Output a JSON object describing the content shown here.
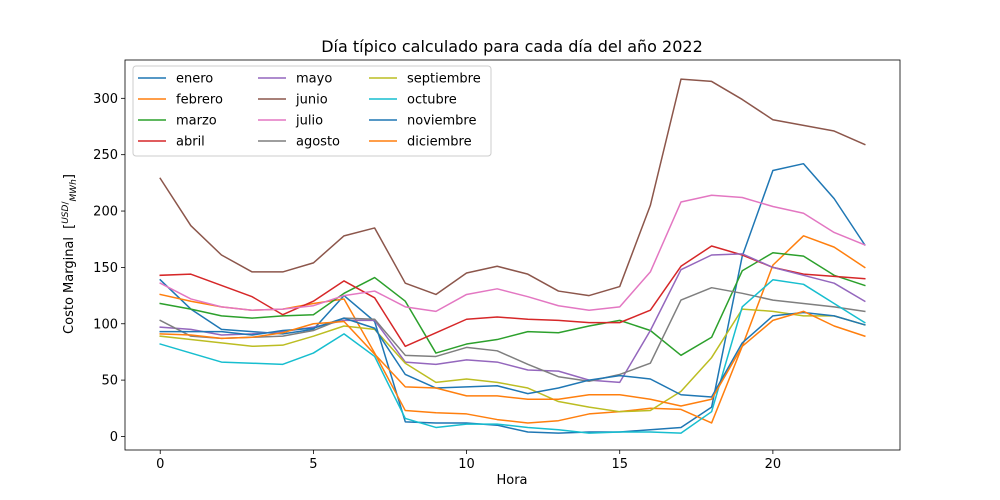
{
  "chart_data": {
    "type": "line",
    "title": "Día típico calculado para cada día del año 2022",
    "xlabel": "Hora",
    "ylabel_main": "Costo Marginal",
    "ylabel_unit_num": "USD",
    "ylabel_unit_den": "MWh",
    "xlim": [
      -1.15,
      24.15
    ],
    "ylim": [
      -12,
      334
    ],
    "xticks": [
      0,
      5,
      10,
      15,
      20
    ],
    "yticks": [
      0,
      50,
      100,
      150,
      200,
      250,
      300
    ],
    "grid": false,
    "legend_position": "top-left",
    "x": [
      0,
      1,
      2,
      3,
      4,
      5,
      6,
      7,
      8,
      9,
      10,
      11,
      12,
      13,
      14,
      15,
      16,
      17,
      18,
      19,
      20,
      21,
      22,
      23
    ],
    "series": [
      {
        "name": "enero",
        "color": "#1f77b4",
        "values": [
          139,
          113,
          95,
          93,
          91,
          95,
          125,
          102,
          13,
          12,
          12,
          10,
          4,
          3,
          4,
          4,
          6,
          8,
          26,
          160,
          236,
          242,
          211,
          170
        ]
      },
      {
        "name": "febrero",
        "color": "#ff7f0e",
        "values": [
          126,
          120,
          115,
          112,
          113,
          118,
          122,
          74,
          23,
          21,
          20,
          15,
          12,
          14,
          20,
          22,
          25,
          24,
          12,
          80,
          152,
          178,
          168,
          150
        ]
      },
      {
        "name": "marzo",
        "color": "#2ca02c",
        "values": [
          118,
          113,
          107,
          105,
          107,
          108,
          127,
          141,
          120,
          74,
          82,
          86,
          93,
          92,
          98,
          103,
          94,
          72,
          88,
          147,
          163,
          160,
          143,
          134
        ]
      },
      {
        "name": "abril",
        "color": "#d62728",
        "values": [
          143,
          144,
          134,
          124,
          108,
          120,
          138,
          123,
          80,
          92,
          104,
          106,
          104,
          103,
          101,
          101,
          112,
          151,
          169,
          161,
          150,
          144,
          142,
          140
        ]
      },
      {
        "name": "mayo",
        "color": "#9467bd",
        "values": [
          97,
          95,
          90,
          91,
          93,
          97,
          103,
          103,
          66,
          64,
          68,
          66,
          59,
          58,
          50,
          48,
          94,
          148,
          161,
          162,
          150,
          143,
          136,
          120
        ]
      },
      {
        "name": "junio",
        "color": "#8c564b",
        "values": [
          229,
          187,
          161,
          146,
          146,
          154,
          178,
          185,
          136,
          126,
          145,
          151,
          144,
          129,
          125,
          133,
          205,
          317,
          315,
          299,
          281,
          276,
          271,
          259
        ]
      },
      {
        "name": "julio",
        "color": "#e377c2",
        "values": [
          136,
          122,
          115,
          112,
          113,
          116,
          125,
          129,
          115,
          111,
          126,
          131,
          124,
          116,
          112,
          115,
          146,
          208,
          214,
          212,
          204,
          198,
          181,
          170
        ]
      },
      {
        "name": "agosto",
        "color": "#7f7f7f",
        "values": [
          103,
          89,
          87,
          88,
          89,
          94,
          105,
          104,
          72,
          71,
          79,
          76,
          64,
          53,
          49,
          55,
          65,
          121,
          132,
          127,
          121,
          118,
          115,
          111
        ]
      },
      {
        "name": "septiembre",
        "color": "#bcbd22",
        "values": [
          89,
          86,
          83,
          80,
          81,
          89,
          98,
          95,
          65,
          48,
          51,
          48,
          43,
          31,
          26,
          22,
          23,
          40,
          70,
          113,
          111,
          107,
          107,
          99
        ]
      },
      {
        "name": "octubre",
        "color": "#17becf",
        "values": [
          82,
          74,
          66,
          65,
          64,
          74,
          91,
          71,
          16,
          8,
          11,
          11,
          8,
          6,
          3,
          4,
          4,
          3,
          22,
          115,
          139,
          135,
          118,
          101
        ]
      },
      {
        "name": "noviembre",
        "color": "#1f77b4",
        "values": [
          93,
          93,
          93,
          90,
          94,
          96,
          105,
          96,
          55,
          43,
          44,
          45,
          38,
          43,
          50,
          54,
          51,
          37,
          35,
          83,
          107,
          110,
          107,
          99
        ]
      },
      {
        "name": "diciembre",
        "color": "#ff7f0e",
        "values": [
          91,
          90,
          87,
          88,
          92,
          100,
          102,
          73,
          44,
          43,
          36,
          36,
          33,
          33,
          37,
          37,
          33,
          27,
          33,
          80,
          103,
          111,
          98,
          89
        ]
      }
    ]
  }
}
